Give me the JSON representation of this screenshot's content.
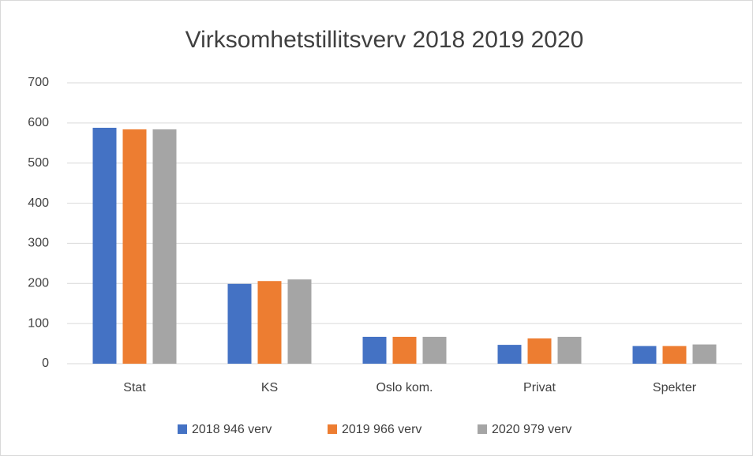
{
  "chart_data": {
    "type": "bar",
    "title": "Virksomhetstillitsverv 2018 2019 2020",
    "categories": [
      "Stat",
      "KS",
      "Oslo kom.",
      "Privat",
      "Spekter"
    ],
    "series": [
      {
        "name": "2018 946 verv",
        "color": "#4472c4",
        "values": [
          588,
          199,
          67,
          47,
          44
        ]
      },
      {
        "name": "2019 966 verv",
        "color": "#ed7d31",
        "values": [
          584,
          206,
          67,
          63,
          44
        ]
      },
      {
        "name": "2020 979 verv",
        "color": "#a5a5a5",
        "values": [
          584,
          210,
          67,
          67,
          48
        ]
      }
    ],
    "ylim": [
      0,
      700
    ],
    "yticks": [
      0,
      100,
      200,
      300,
      400,
      500,
      600,
      700
    ],
    "grid": true,
    "legend": "bottom"
  }
}
